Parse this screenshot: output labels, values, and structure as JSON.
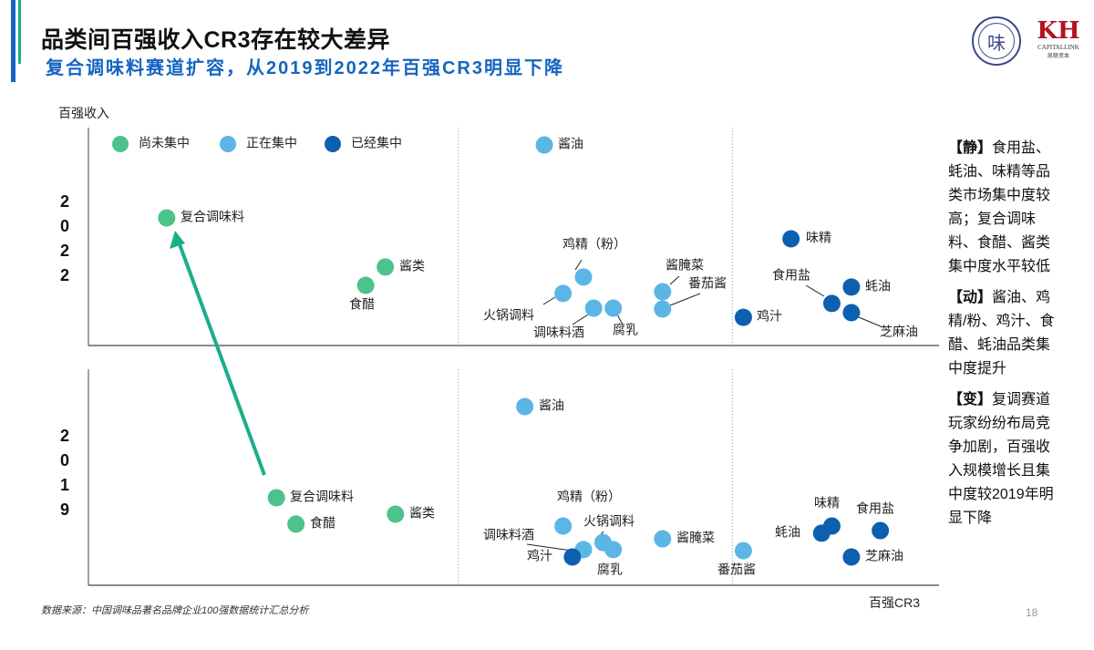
{
  "header": {
    "title": "品类间百强收入CR3存在较大差异",
    "subtitle": "复合调味料赛道扩容，从2019到2022年百强CR3明显下降"
  },
  "logos": {
    "seal": "味",
    "capitallink": {
      "mark": "KH",
      "name": "CAPITALLINK",
      "cn": "凯联资本"
    }
  },
  "side_notes": [
    {
      "tag": "【静】",
      "text": "食用盐、蚝油、味精等品类市场集中度较高；复合调味料、食醋、酱类集中度水平较低"
    },
    {
      "tag": "【动】",
      "text": "酱油、鸡精/粉、鸡汁、食醋、蚝油品类集中度提升"
    },
    {
      "tag": "【变】",
      "text": "复调赛道玩家纷纷布局竞争加剧，百强收入规模增长且集中度较2019年明显下降"
    }
  ],
  "footnote": "数据来源：中国调味品著名品牌企业100强数据统计汇总分析",
  "page_number": "18",
  "chart_data": {
    "type": "scatter",
    "xlabel": "百强CR3",
    "ylabel": "百强收入",
    "note": "",
    "x_dividers": [
      43.5,
      75.7
    ],
    "grid": false,
    "legend": {
      "placement": "top-left",
      "entries": [
        {
          "name": "尚未集中",
          "color": "#4cc38a"
        },
        {
          "name": "正在集中",
          "color": "#5bb6e6"
        },
        {
          "name": "已经集中",
          "color": "#0d5fb0"
        }
      ]
    },
    "panels": [
      {
        "year": "2022",
        "points": [
          {
            "label": "酱油",
            "group": 1,
            "x": 53.6,
            "y": 94.0
          },
          {
            "label": "复合调味料",
            "group": 0,
            "x": 9.2,
            "y": 59.8
          },
          {
            "label": "酱类",
            "group": 0,
            "x": 34.9,
            "y": 36.8
          },
          {
            "label": "食醋",
            "group": 0,
            "x": 32.6,
            "y": 28.2
          },
          {
            "label": "鸡精（粉）",
            "group": 1,
            "x": 58.2,
            "y": 32.1
          },
          {
            "label": "火锅调料",
            "group": 1,
            "x": 55.8,
            "y": 24.4
          },
          {
            "label": "调味料酒",
            "group": 1,
            "x": 59.4,
            "y": 17.5
          },
          {
            "label": "腐乳",
            "group": 1,
            "x": 61.7,
            "y": 17.5
          },
          {
            "label": "酱腌菜",
            "group": 1,
            "x": 67.5,
            "y": 25.2
          },
          {
            "label": "番茄酱",
            "group": 1,
            "x": 67.5,
            "y": 17.1
          },
          {
            "label": "味精",
            "group": 2,
            "x": 82.6,
            "y": 50.0
          },
          {
            "label": "蚝油",
            "group": 2,
            "x": 89.7,
            "y": 27.4
          },
          {
            "label": "食用盐",
            "group": 2,
            "x": 87.4,
            "y": 19.7
          },
          {
            "label": "芝麻油",
            "group": 2,
            "x": 89.7,
            "y": 15.4
          },
          {
            "label": "鸡汁",
            "group": 2,
            "x": 77.0,
            "y": 13.2
          }
        ]
      },
      {
        "year": "2019",
        "points": [
          {
            "label": "酱油",
            "group": 1,
            "x": 51.3,
            "y": 82.7
          },
          {
            "label": "复合调味料",
            "group": 0,
            "x": 22.1,
            "y": 40.5
          },
          {
            "label": "食醋",
            "group": 0,
            "x": 24.4,
            "y": 28.3
          },
          {
            "label": "酱类",
            "group": 0,
            "x": 36.1,
            "y": 32.9
          },
          {
            "label": "鸡精（粉）",
            "group": 1,
            "x": 55.8,
            "y": 27.4
          },
          {
            "label": "火锅调料",
            "group": 1,
            "x": 60.5,
            "y": 19.8
          },
          {
            "label": "腐乳",
            "group": 1,
            "x": 61.7,
            "y": 16.5
          },
          {
            "label": "调味料酒",
            "group": 1,
            "x": 58.2,
            "y": 16.5
          },
          {
            "label": "鸡汁",
            "group": 2,
            "x": 56.9,
            "y": 13.1
          },
          {
            "label": "酱腌菜",
            "group": 1,
            "x": 67.5,
            "y": 21.5
          },
          {
            "label": "番茄酱",
            "group": 1,
            "x": 77.0,
            "y": 16.0
          },
          {
            "label": "味精",
            "group": 2,
            "x": 87.4,
            "y": 27.4
          },
          {
            "label": "蚝油",
            "group": 2,
            "x": 86.2,
            "y": 24.1
          },
          {
            "label": "食用盐",
            "group": 2,
            "x": 93.1,
            "y": 25.3
          },
          {
            "label": "芝麻油",
            "group": 2,
            "x": 89.7,
            "y": 13.1
          }
        ]
      }
    ],
    "annotation_arrow": {
      "from": "复合调味料 2019",
      "to": "复合调味料 2022",
      "color": "#1aae8a"
    }
  }
}
